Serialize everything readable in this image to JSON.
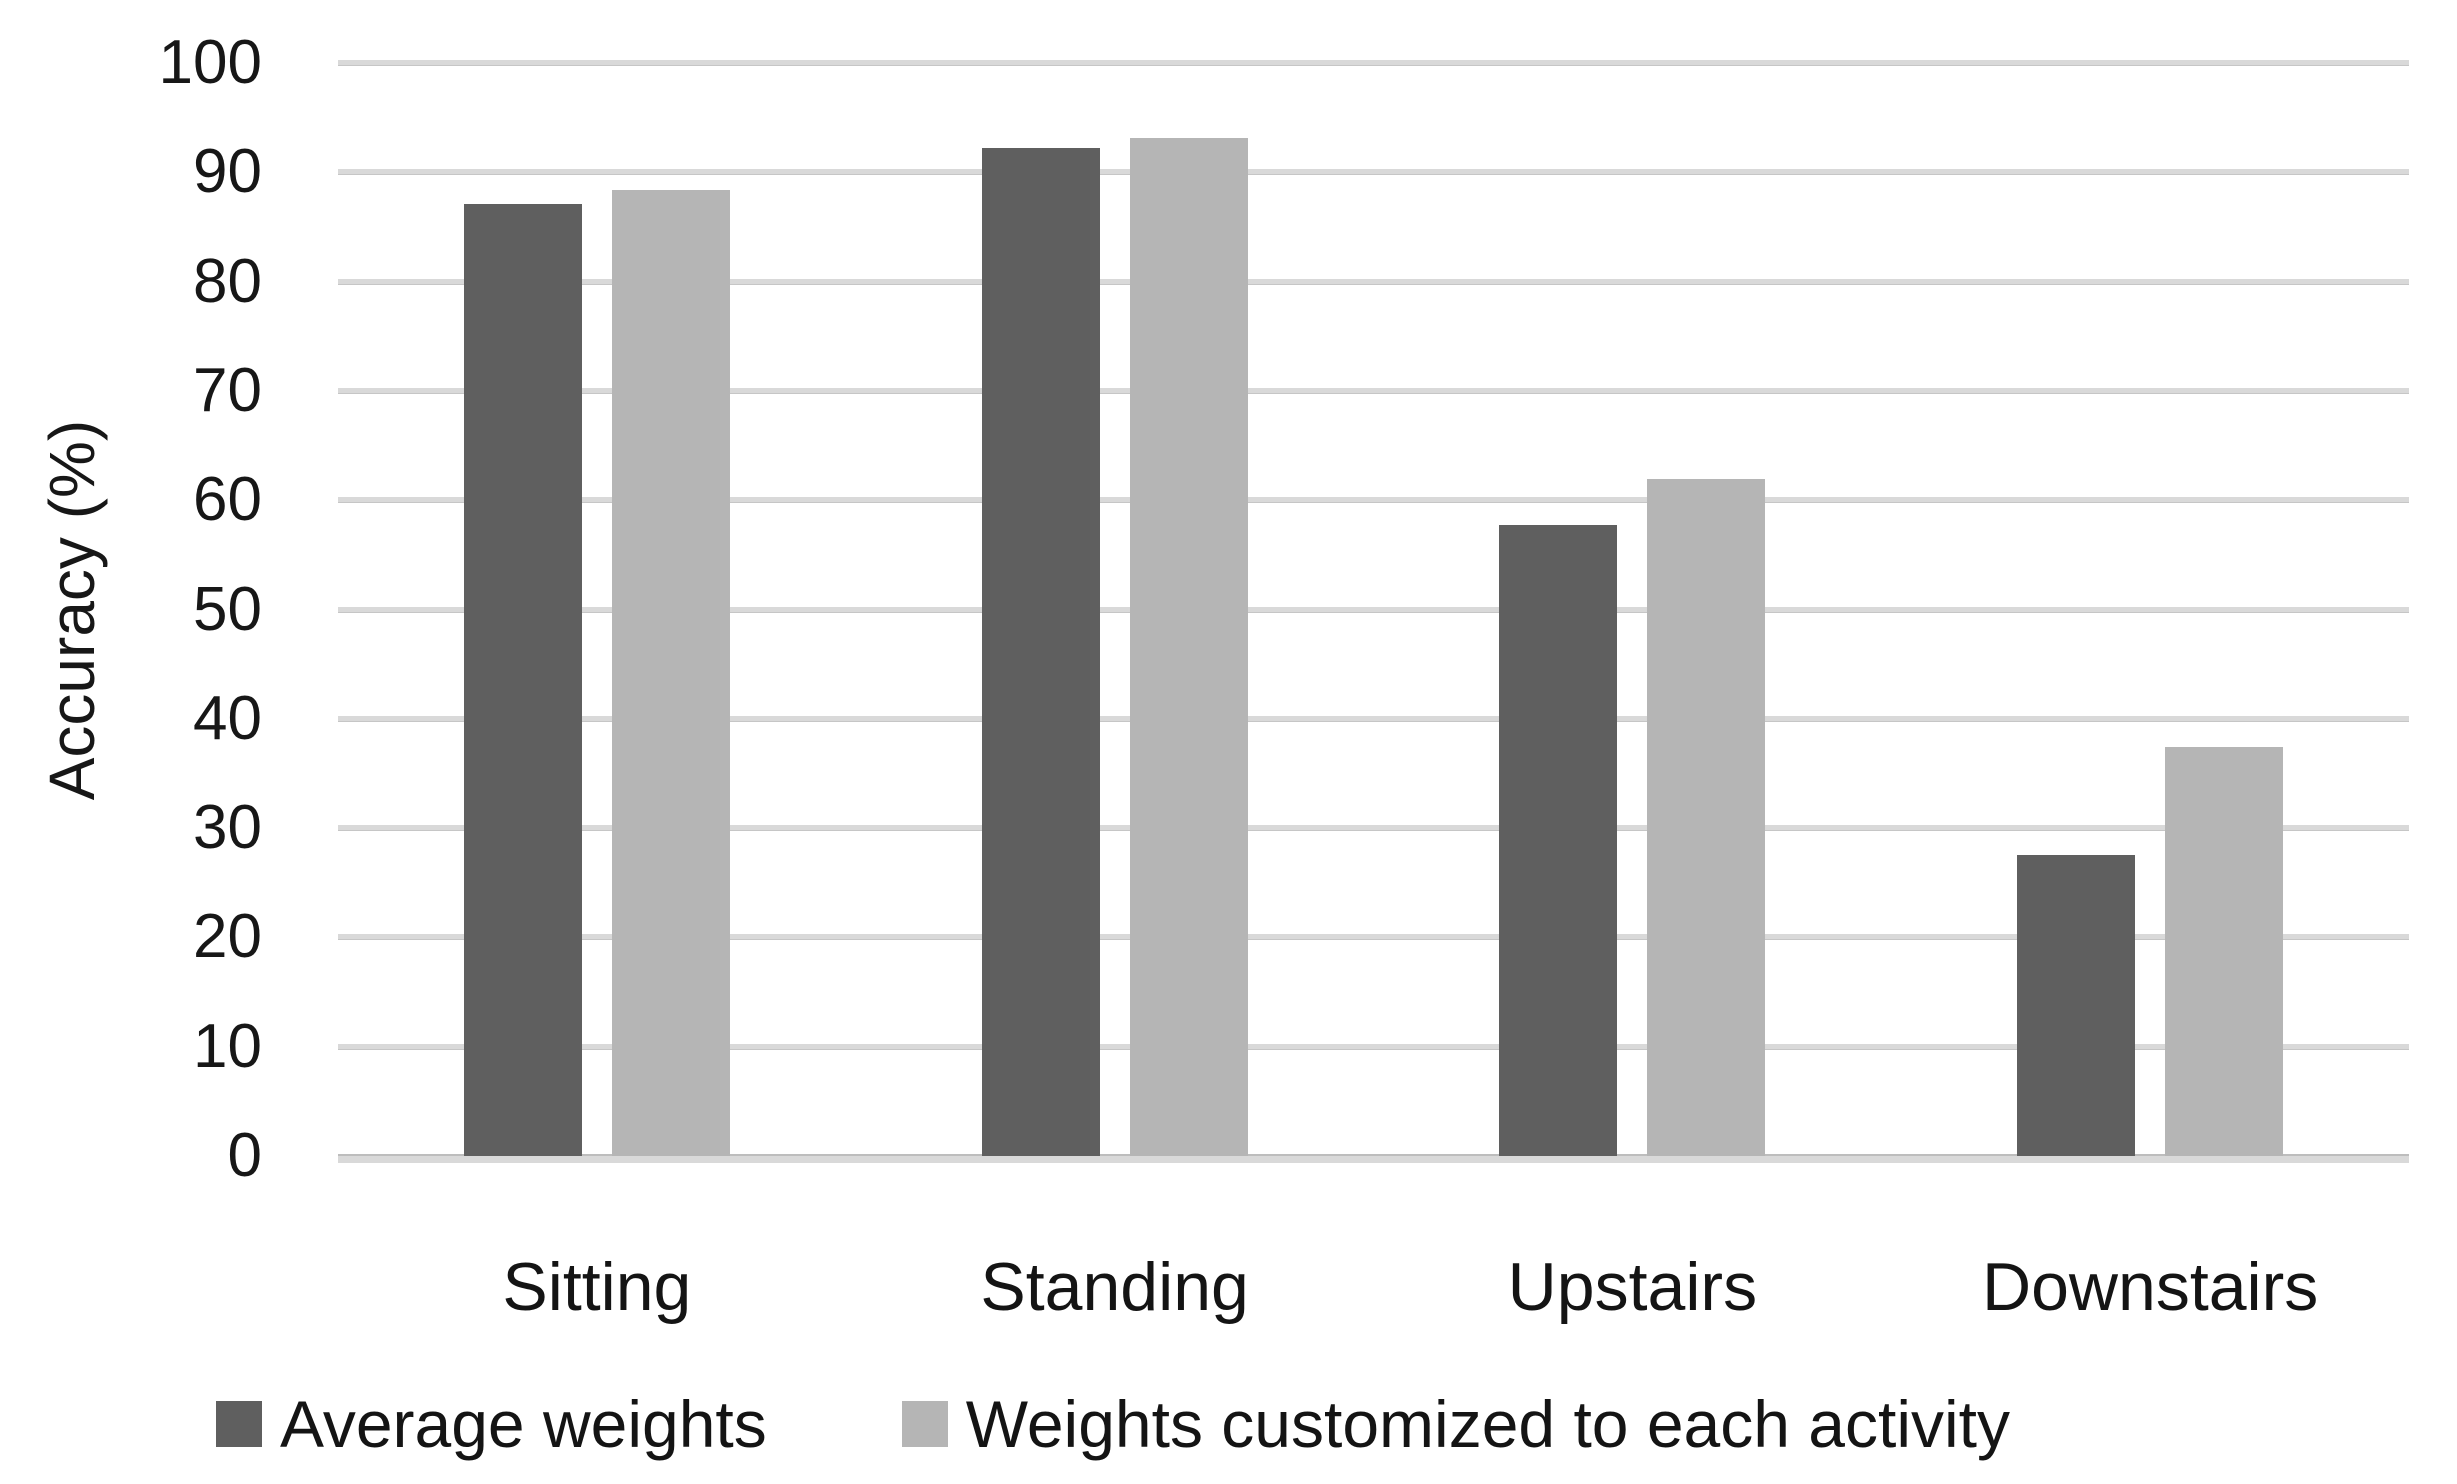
{
  "chart_data": {
    "type": "bar",
    "title": "",
    "xlabel": "",
    "ylabel": "Accuracy (%)",
    "ylim": [
      0,
      100
    ],
    "y_ticks": [
      0,
      10,
      20,
      30,
      40,
      50,
      60,
      70,
      80,
      90,
      100
    ],
    "grid": true,
    "legend_position": "bottom",
    "categories": [
      "Sitting",
      "Standing",
      "Upstairs",
      "Downstairs"
    ],
    "series": [
      {
        "name": "Average weights",
        "color": "#5f5f5f",
        "values": [
          87.1,
          92.2,
          57.7,
          27.5
        ]
      },
      {
        "name": "Weights customized to each activity",
        "color": "#b5b5b5",
        "values": [
          88.4,
          93.1,
          61.9,
          37.4
        ]
      }
    ],
    "colors": {
      "gridline": "#d9d9d9",
      "axis_line": "#bdbdbd",
      "text": "#171717",
      "background": "#ffffff"
    }
  }
}
